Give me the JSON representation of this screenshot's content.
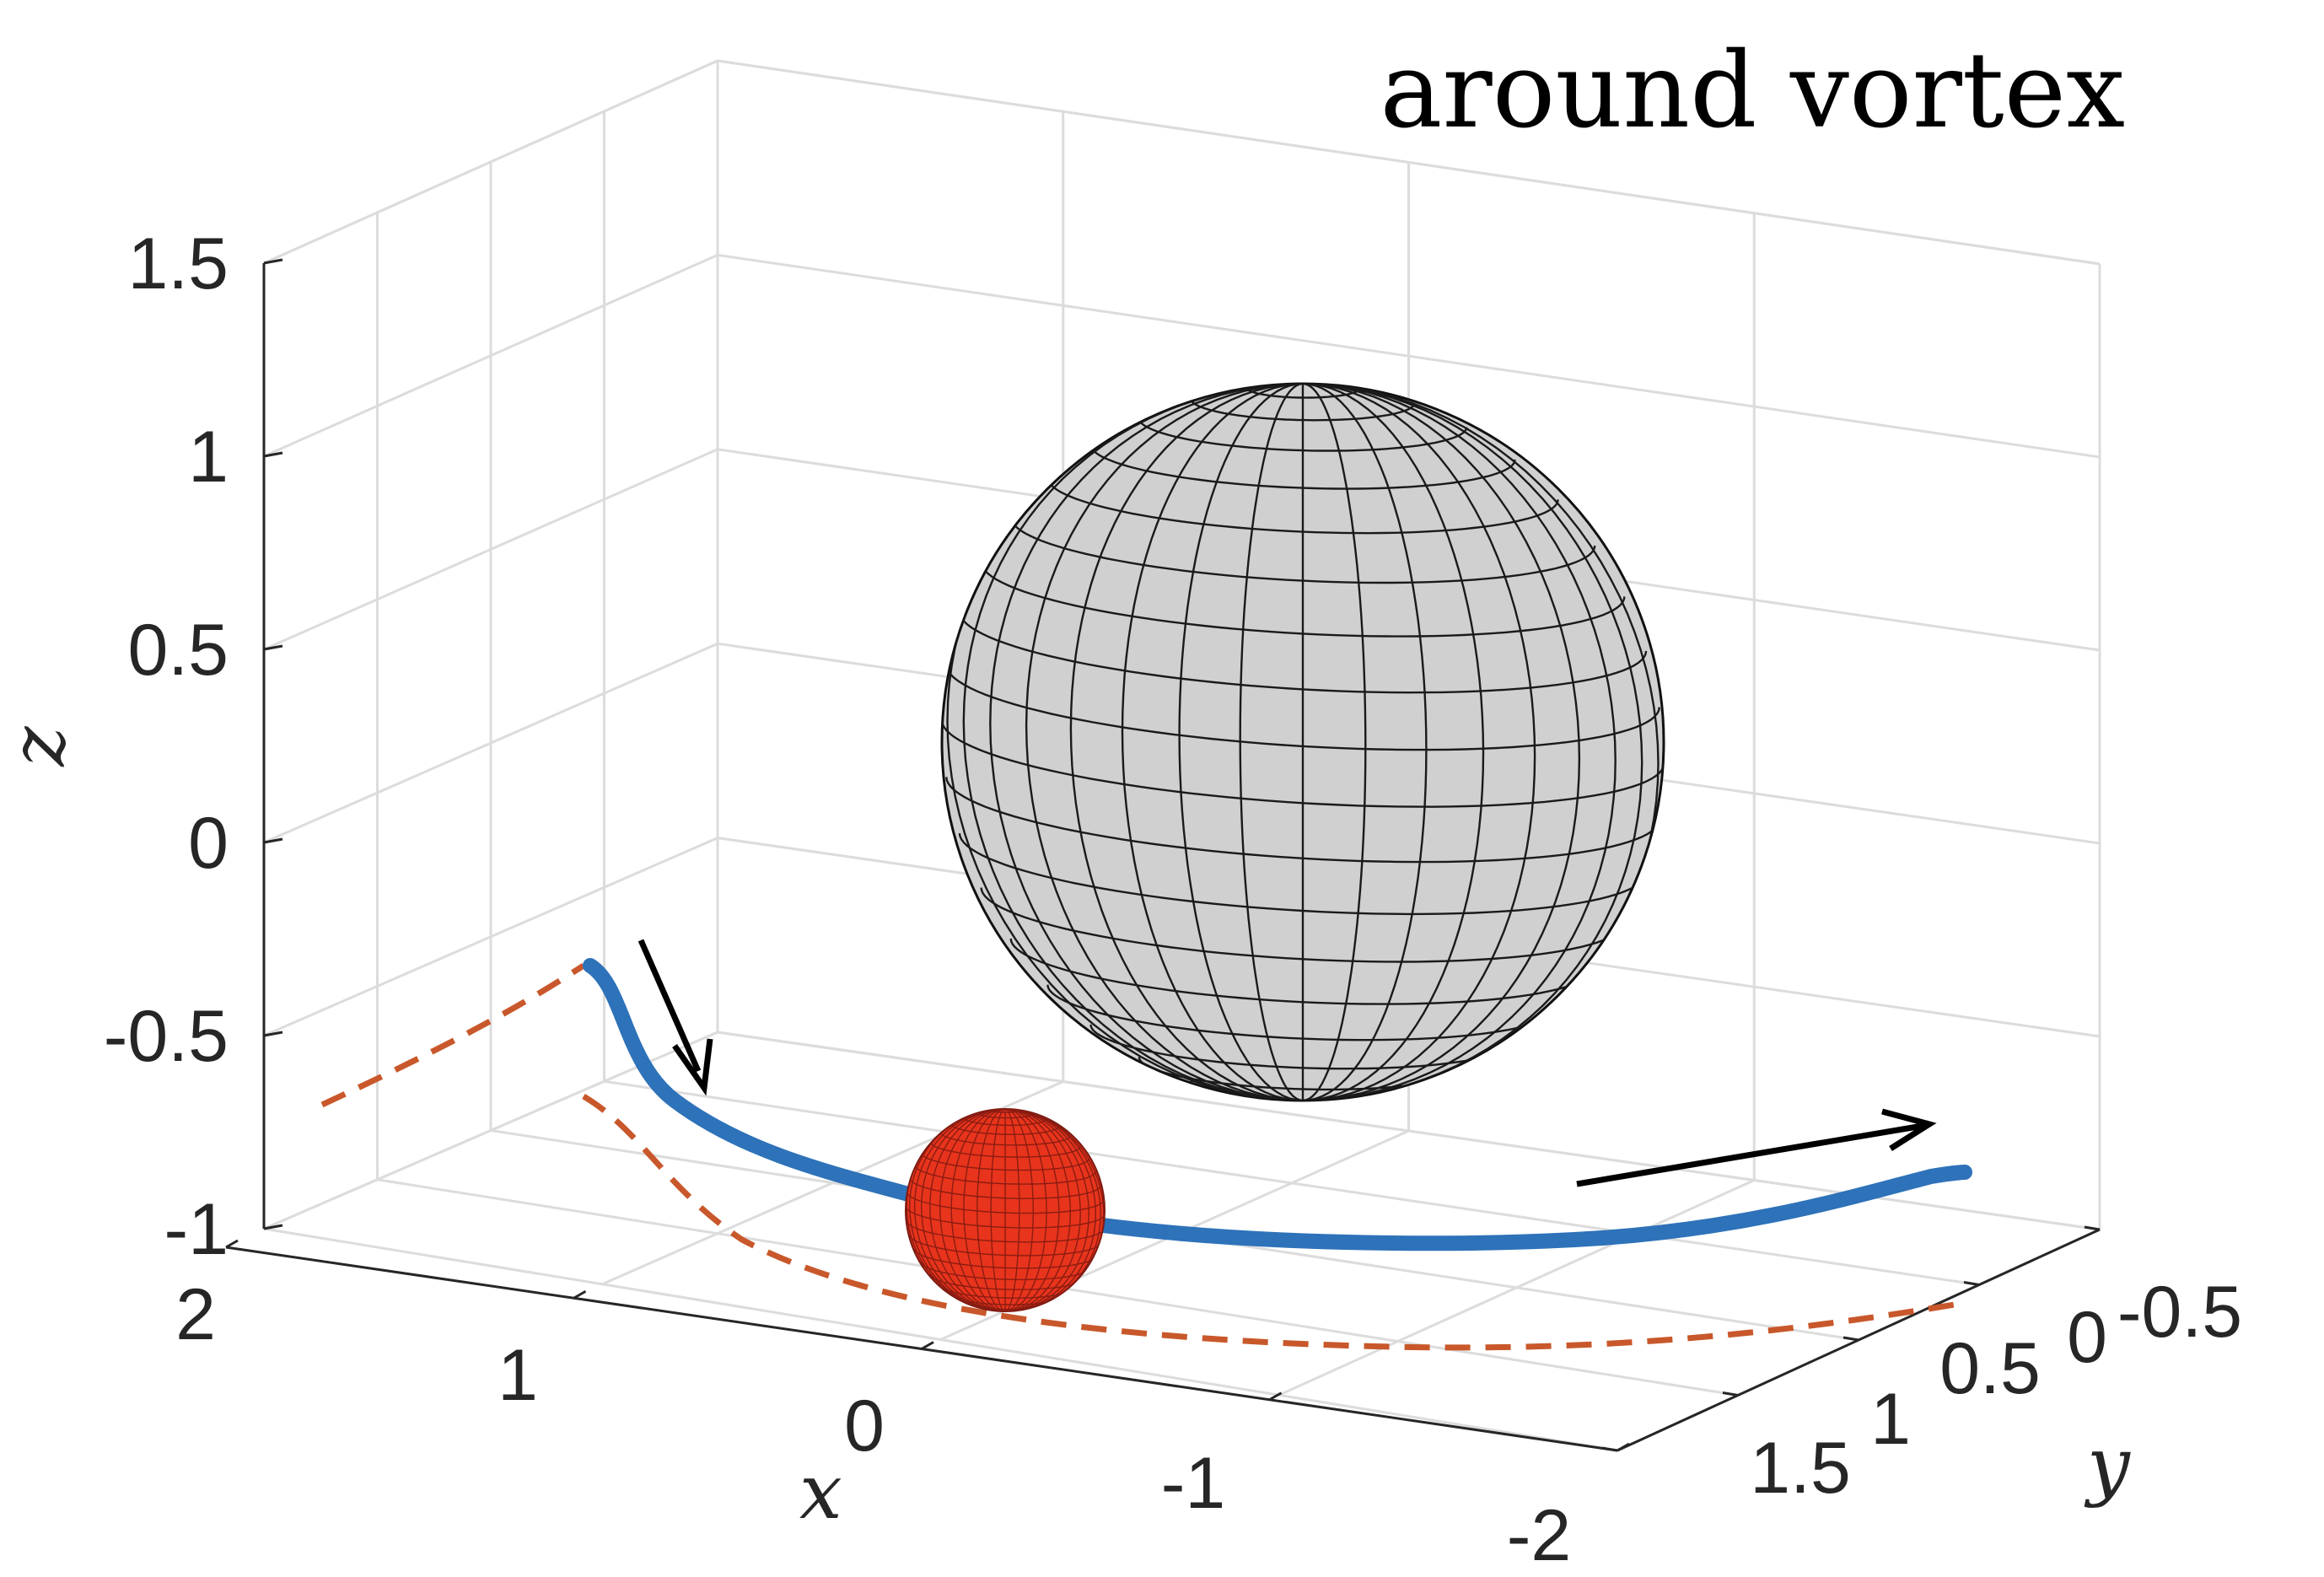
{
  "chart_data": {
    "type": "line",
    "title": "around vortex",
    "xlabel": "x",
    "ylabel": "y",
    "zlabel": "z",
    "xlim": [
      -2,
      2
    ],
    "ylim": [
      -0.5,
      1.5
    ],
    "zlim": [
      -1,
      1.5
    ],
    "x_ticks": [
      "2",
      "1",
      "0",
      "-1",
      "-2"
    ],
    "y_ticks": [
      "-0.5",
      "0",
      "0.5",
      "1",
      "1.5"
    ],
    "z_ticks": [
      "1.5",
      "1",
      "0.5",
      "0",
      "-0.5",
      "-1"
    ],
    "grid": true,
    "series": [
      {
        "style": "solid",
        "color": "#2e72b9"
      },
      {
        "style": "dashed",
        "color": "#c8582b"
      }
    ],
    "objects": [
      {
        "shape": "ellipsoid",
        "color": "#d0d0d0"
      },
      {
        "shape": "sphere",
        "color": "#e8341c"
      }
    ],
    "arrow_color": "#000000"
  }
}
